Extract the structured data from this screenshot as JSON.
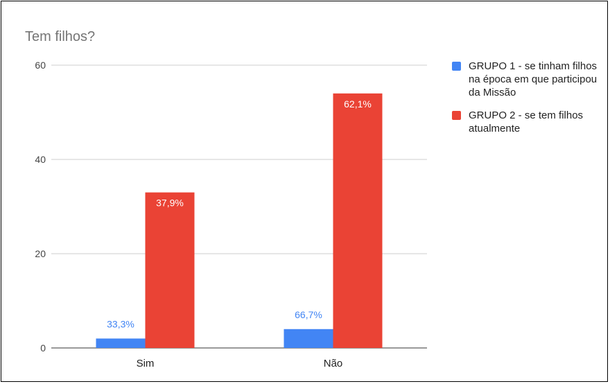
{
  "chart_data": {
    "type": "bar",
    "title": "Tem filhos?",
    "categories": [
      "Sim",
      "Não"
    ],
    "series": [
      {
        "name": "GRUPO 1 - se tinham filhos na época em que participou da Missão",
        "color": "#4285f4",
        "values": [
          2,
          4
        ],
        "data_labels": [
          "33,3%",
          "66,7%"
        ]
      },
      {
        "name": "GRUPO 2 - se tem filhos atualmente",
        "color": "#ea4335",
        "values": [
          33,
          54
        ],
        "data_labels": [
          "37,9%",
          "62,1%"
        ]
      }
    ],
    "ylim": [
      0,
      60
    ],
    "yticks": [
      "0",
      "20",
      "40",
      "60"
    ],
    "grid": true,
    "legend_position": "right"
  }
}
